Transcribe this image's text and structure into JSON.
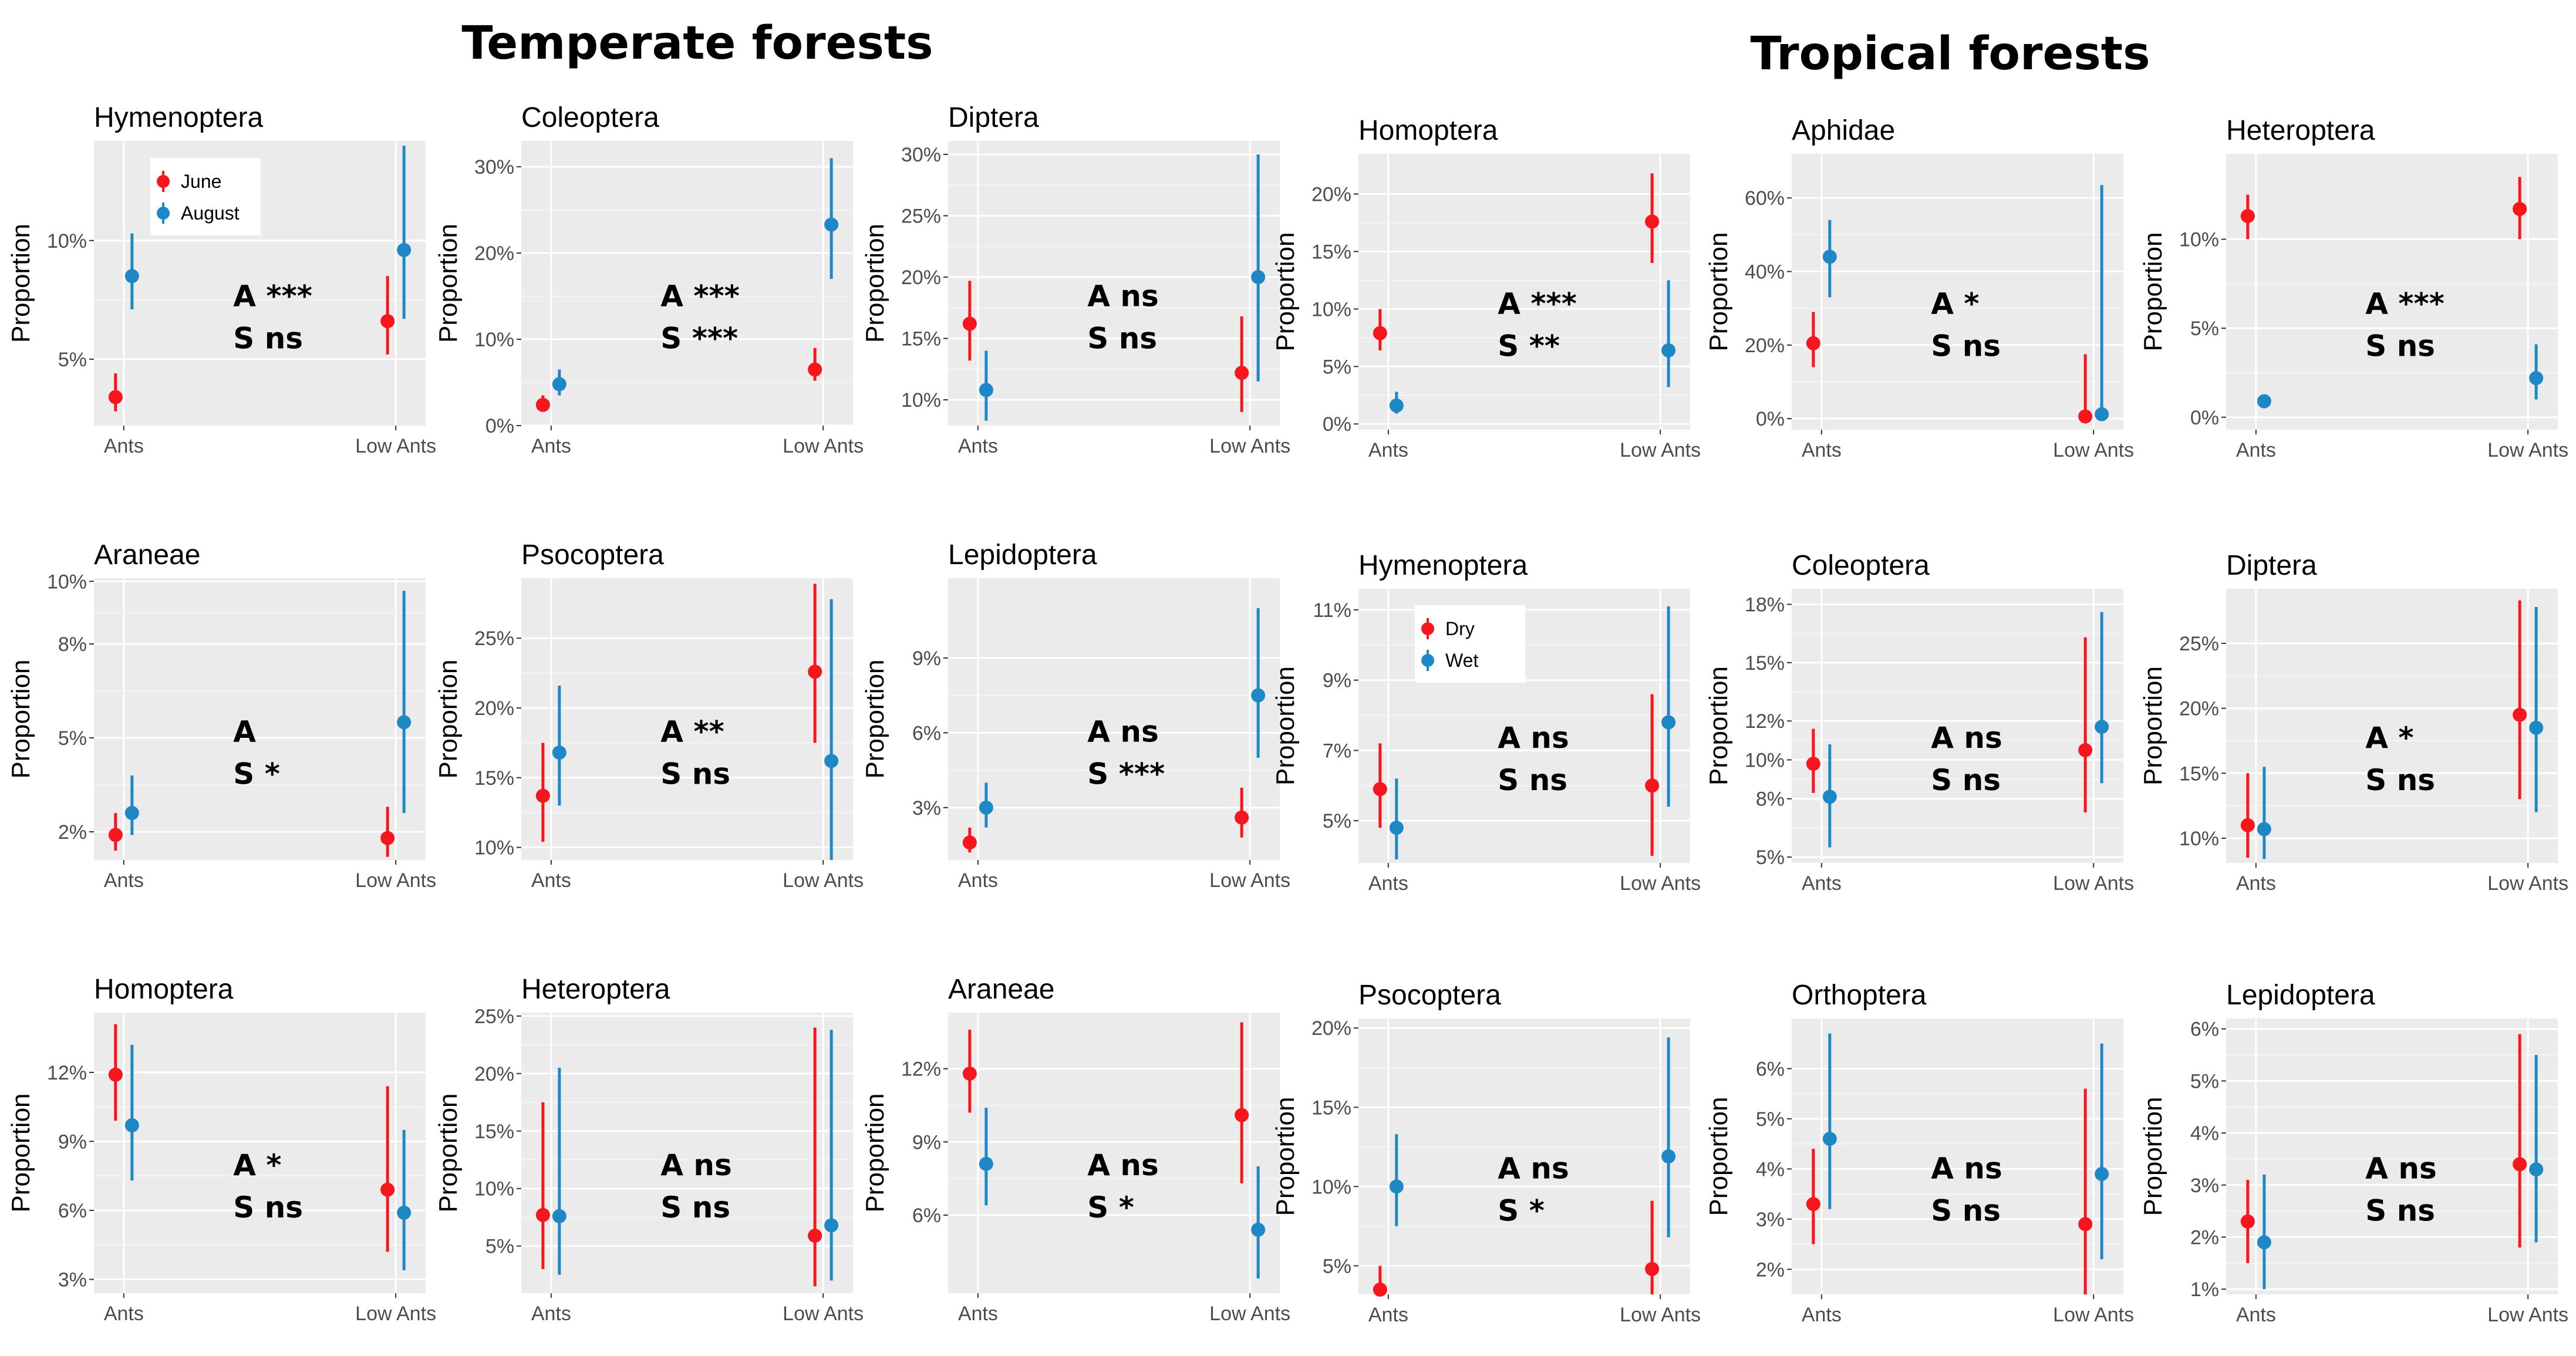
{
  "section_titles": {
    "temperate": "Temperate forests",
    "tropical": "Tropical forests"
  },
  "colors": {
    "series1": "#f8151b",
    "series2": "#1e88c7",
    "panel_bg": "#ebebeb",
    "grid": "#ffffff"
  },
  "chart_data": [
    {
      "type": "scatter",
      "section": "temperate",
      "title": "Hymenoptera",
      "ylabel": "Proportion",
      "categories": [
        "Ants",
        "Low Ants"
      ],
      "ylim": [
        2.2,
        14.2
      ],
      "yticks": [
        5,
        10
      ],
      "yticklabels": [
        "5%",
        "10%"
      ],
      "series": [
        {
          "name": "June",
          "values": [
            3.4,
            6.6
          ],
          "err_low": [
            2.8,
            5.2
          ],
          "err_high": [
            4.4,
            8.5
          ]
        },
        {
          "name": "August",
          "values": [
            8.5,
            9.6
          ],
          "err_low": [
            7.1,
            6.7
          ],
          "err_high": [
            10.3,
            14.0
          ]
        }
      ],
      "legend": {
        "entries": [
          "June",
          "August"
        ],
        "position": "top-left"
      },
      "annotations": [
        "A ***",
        "S ns"
      ]
    },
    {
      "type": "scatter",
      "section": "temperate",
      "title": "Coleoptera",
      "ylabel": "Proportion",
      "categories": [
        "Ants",
        "Low Ants"
      ],
      "ylim": [
        0,
        33
      ],
      "yticks": [
        0,
        10,
        20,
        30
      ],
      "yticklabels": [
        "0%",
        "10%",
        "20%",
        "30%"
      ],
      "series": [
        {
          "name": "June",
          "values": [
            2.4,
            6.5
          ],
          "err_low": [
            1.6,
            5.2
          ],
          "err_high": [
            3.5,
            9.0
          ]
        },
        {
          "name": "August",
          "values": [
            4.8,
            23.3
          ],
          "err_low": [
            3.5,
            17.0
          ],
          "err_high": [
            6.5,
            31.0
          ]
        }
      ],
      "annotations": [
        "A ***",
        "S ***"
      ]
    },
    {
      "type": "scatter",
      "section": "temperate",
      "title": "Diptera",
      "ylabel": "Proportion",
      "categories": [
        "Ants",
        "Low Ants"
      ],
      "ylim": [
        7.9,
        31.1
      ],
      "yticks": [
        10,
        15,
        20,
        25,
        30
      ],
      "yticklabels": [
        "10%",
        "15%",
        "20%",
        "25%",
        "30%"
      ],
      "series": [
        {
          "name": "June",
          "values": [
            16.2,
            12.2
          ],
          "err_low": [
            13.2,
            9.0
          ],
          "err_high": [
            19.7,
            16.8
          ]
        },
        {
          "name": "August",
          "values": [
            10.8,
            20.0
          ],
          "err_low": [
            8.3,
            11.5
          ],
          "err_high": [
            14.0,
            30.0
          ]
        }
      ],
      "annotations": [
        "A ns",
        "S ns"
      ]
    },
    {
      "type": "scatter",
      "section": "temperate",
      "title": "Homoptera",
      "ylabel": "Proportion",
      "categories": [
        "Ants",
        "Low Ants"
      ],
      "ylim": [
        -0.5,
        23.5
      ],
      "yticks": [
        0,
        5,
        10,
        15,
        20
      ],
      "yticklabels": [
        "0%",
        "5%",
        "10%",
        "15%",
        "20%"
      ],
      "series": [
        {
          "name": "June",
          "values": [
            7.9,
            17.6
          ],
          "err_low": [
            6.4,
            14.0
          ],
          "err_high": [
            10.0,
            21.8
          ]
        },
        {
          "name": "August",
          "values": [
            1.6,
            6.4
          ],
          "err_low": [
            0.9,
            3.2
          ],
          "err_high": [
            2.8,
            12.5
          ]
        }
      ],
      "annotations": [
        "A ***",
        "S **"
      ]
    },
    {
      "type": "scatter",
      "section": "temperate",
      "title": "Aphidae",
      "ylabel": "Proportion",
      "categories": [
        "Ants",
        "Low Ants"
      ],
      "ylim": [
        -3,
        72
      ],
      "yticks": [
        0,
        20,
        40,
        60
      ],
      "yticklabels": [
        "0%",
        "20%",
        "40%",
        "60%"
      ],
      "series": [
        {
          "name": "June",
          "values": [
            20.5,
            0.6
          ],
          "err_low": [
            14.0,
            0.0
          ],
          "err_high": [
            29.0,
            17.5
          ]
        },
        {
          "name": "August",
          "values": [
            44.0,
            1.2
          ],
          "err_low": [
            33.0,
            0.0
          ],
          "err_high": [
            54.0,
            63.5
          ]
        }
      ],
      "annotations": [
        "A *",
        "S ns"
      ]
    },
    {
      "type": "scatter",
      "section": "temperate",
      "title": "Heteroptera",
      "ylabel": "Proportion",
      "categories": [
        "Ants",
        "Low Ants"
      ],
      "ylim": [
        -0.7,
        14.8
      ],
      "yticks": [
        0,
        5,
        10
      ],
      "yticklabels": [
        "0%",
        "5%",
        "10%"
      ],
      "series": [
        {
          "name": "June",
          "values": [
            11.3,
            11.7
          ],
          "err_low": [
            10.0,
            10.0
          ],
          "err_high": [
            12.5,
            13.5
          ]
        },
        {
          "name": "August",
          "values": [
            0.9,
            2.2
          ],
          "err_low": [
            0.5,
            1.0
          ],
          "err_high": [
            1.2,
            4.1
          ]
        }
      ],
      "annotations": [
        "A ***",
        "S ns"
      ]
    },
    {
      "type": "scatter",
      "section": "temperate",
      "title": "Araneae",
      "ylabel": "Proportion",
      "categories": [
        "Ants",
        "Low Ants"
      ],
      "ylim": [
        1.1,
        10.1
      ],
      "yticks": [
        2,
        5,
        8,
        10
      ],
      "yticklabels": [
        "2%",
        "5%",
        "8%",
        "10%"
      ],
      "series": [
        {
          "name": "June",
          "values": [
            1.9,
            1.8
          ],
          "err_low": [
            1.4,
            1.2
          ],
          "err_high": [
            2.6,
            2.8
          ]
        },
        {
          "name": "August",
          "values": [
            2.6,
            5.5
          ],
          "err_low": [
            1.9,
            2.6
          ],
          "err_high": [
            3.8,
            9.7
          ]
        }
      ],
      "annotations": [
        "A",
        "S *"
      ]
    },
    {
      "type": "scatter",
      "section": "temperate",
      "title": "Psocoptera",
      "ylabel": "Proportion",
      "categories": [
        "Ants",
        "Low Ants"
      ],
      "ylim": [
        9.1,
        29.3
      ],
      "yticks": [
        10,
        15,
        20,
        25
      ],
      "yticklabels": [
        "10%",
        "15%",
        "20%",
        "25%"
      ],
      "series": [
        {
          "name": "June",
          "values": [
            13.7,
            22.6
          ],
          "err_low": [
            10.4,
            17.5
          ],
          "err_high": [
            17.5,
            28.9
          ]
        },
        {
          "name": "August",
          "values": [
            16.8,
            16.2
          ],
          "err_low": [
            13.0,
            8.7
          ],
          "err_high": [
            21.6,
            27.8
          ]
        }
      ],
      "annotations": [
        "A **",
        "S ns"
      ]
    },
    {
      "type": "scatter",
      "section": "temperate",
      "title": "Lepidoptera",
      "ylabel": "Proportion",
      "categories": [
        "Ants",
        "Low Ants"
      ],
      "ylim": [
        0.9,
        12.2
      ],
      "yticks": [
        3,
        6,
        9
      ],
      "yticklabels": [
        "3%",
        "6%",
        "9%"
      ],
      "series": [
        {
          "name": "June",
          "values": [
            1.6,
            2.6
          ],
          "err_low": [
            1.2,
            1.8
          ],
          "err_high": [
            2.2,
            3.8
          ]
        },
        {
          "name": "August",
          "values": [
            3.0,
            7.5
          ],
          "err_low": [
            2.2,
            5.0
          ],
          "err_high": [
            4.0,
            11.0
          ]
        }
      ],
      "annotations": [
        "A ns",
        "S ***"
      ]
    },
    {
      "type": "scatter",
      "section": "tropical",
      "title": "Hymenoptera",
      "ylabel": "Proportion",
      "categories": [
        "Ants",
        "Low Ants"
      ],
      "ylim": [
        3.8,
        11.6
      ],
      "yticks": [
        5,
        7,
        9,
        11
      ],
      "yticklabels": [
        "5%",
        "7%",
        "9%",
        "11%"
      ],
      "series": [
        {
          "name": "Dry",
          "values": [
            5.9,
            6.0
          ],
          "err_low": [
            4.8,
            4.0
          ],
          "err_high": [
            7.2,
            8.6
          ]
        },
        {
          "name": "Wet",
          "values": [
            4.8,
            7.8
          ],
          "err_low": [
            3.9,
            5.4
          ],
          "err_high": [
            6.2,
            11.1
          ]
        }
      ],
      "legend": {
        "entries": [
          "Dry",
          "Wet"
        ],
        "position": "top-left"
      },
      "annotations": [
        "A ns",
        "S ns"
      ]
    },
    {
      "type": "scatter",
      "section": "tropical",
      "title": "Coleoptera",
      "ylabel": "Proportion",
      "categories": [
        "Ants",
        "Low Ants"
      ],
      "ylim": [
        4.7,
        18.8
      ],
      "yticks": [
        5,
        8,
        10,
        12,
        15,
        18
      ],
      "yticklabels": [
        "5%",
        "8%",
        "10%",
        "12%",
        "15%",
        "18%"
      ],
      "series": [
        {
          "name": "Dry",
          "values": [
            9.8,
            10.5
          ],
          "err_low": [
            8.3,
            7.3
          ],
          "err_high": [
            11.6,
            16.3
          ]
        },
        {
          "name": "Wet",
          "values": [
            8.1,
            11.7
          ],
          "err_low": [
            5.5,
            8.8
          ],
          "err_high": [
            10.8,
            17.6
          ]
        }
      ],
      "annotations": [
        "A ns",
        "S ns"
      ]
    },
    {
      "type": "scatter",
      "section": "tropical",
      "title": "Diptera",
      "ylabel": "Proportion",
      "categories": [
        "Ants",
        "Low Ants"
      ],
      "ylim": [
        8.1,
        29.2
      ],
      "yticks": [
        10,
        15,
        20,
        25
      ],
      "yticklabels": [
        "10%",
        "15%",
        "20%",
        "25%"
      ],
      "series": [
        {
          "name": "Dry",
          "values": [
            11.0,
            19.5
          ],
          "err_low": [
            8.5,
            13.0
          ],
          "err_high": [
            15.0,
            28.3
          ]
        },
        {
          "name": "Wet",
          "values": [
            10.7,
            18.5
          ],
          "err_low": [
            8.4,
            12.0
          ],
          "err_high": [
            15.5,
            27.8
          ]
        }
      ],
      "annotations": [
        "A *",
        "S ns"
      ]
    },
    {
      "type": "scatter",
      "section": "tropical",
      "title": "Homoptera",
      "ylabel": "Proportion",
      "categories": [
        "Ants",
        "Low Ants"
      ],
      "ylim": [
        2.4,
        14.6
      ],
      "yticks": [
        3,
        6,
        9,
        12
      ],
      "yticklabels": [
        "3%",
        "6%",
        "9%",
        "12%"
      ],
      "series": [
        {
          "name": "Dry",
          "values": [
            11.9,
            6.9
          ],
          "err_low": [
            9.9,
            4.2
          ],
          "err_high": [
            14.1,
            11.4
          ]
        },
        {
          "name": "Wet",
          "values": [
            9.7,
            5.9
          ],
          "err_low": [
            7.3,
            3.4
          ],
          "err_high": [
            13.2,
            9.5
          ]
        }
      ],
      "annotations": [
        "A *",
        "S ns"
      ]
    },
    {
      "type": "scatter",
      "section": "tropical",
      "title": "Heteroptera",
      "ylabel": "Proportion",
      "categories": [
        "Ants",
        "Low Ants"
      ],
      "ylim": [
        0.9,
        25.3
      ],
      "yticks": [
        5,
        10,
        15,
        20,
        25
      ],
      "yticklabels": [
        "5%",
        "10%",
        "15%",
        "20%",
        "25%"
      ],
      "series": [
        {
          "name": "Dry",
          "values": [
            7.7,
            5.9
          ],
          "err_low": [
            3.0,
            1.5
          ],
          "err_high": [
            17.5,
            24.0
          ]
        },
        {
          "name": "Wet",
          "values": [
            7.6,
            6.8
          ],
          "err_low": [
            2.5,
            2.0
          ],
          "err_high": [
            20.5,
            23.8
          ]
        }
      ],
      "annotations": [
        "A ns",
        "S ns"
      ]
    },
    {
      "type": "scatter",
      "section": "tropical",
      "title": "Araneae",
      "ylabel": "Proportion",
      "categories": [
        "Ants",
        "Low Ants"
      ],
      "ylim": [
        2.8,
        14.3
      ],
      "yticks": [
        6,
        9,
        12
      ],
      "yticklabels": [
        "6%",
        "9%",
        "12%"
      ],
      "series": [
        {
          "name": "Dry",
          "values": [
            11.8,
            10.1
          ],
          "err_low": [
            10.2,
            7.3
          ],
          "err_high": [
            13.6,
            13.9
          ]
        },
        {
          "name": "Wet",
          "values": [
            8.1,
            5.4
          ],
          "err_low": [
            6.4,
            3.4
          ],
          "err_high": [
            10.4,
            8.0
          ]
        }
      ],
      "annotations": [
        "A ns",
        "S *"
      ]
    },
    {
      "type": "scatter",
      "section": "tropical",
      "title": "Psocoptera",
      "ylabel": "Proportion",
      "categories": [
        "Ants",
        "Low Ants"
      ],
      "ylim": [
        3.2,
        20.6
      ],
      "yticks": [
        5,
        10,
        15,
        20
      ],
      "yticklabels": [
        "5%",
        "10%",
        "15%",
        "20%"
      ],
      "series": [
        {
          "name": "Dry",
          "values": [
            3.5,
            4.8
          ],
          "err_low": [
            2.5,
            2.5
          ],
          "err_high": [
            5.0,
            9.1
          ]
        },
        {
          "name": "Wet",
          "values": [
            10.0,
            11.9
          ],
          "err_low": [
            7.5,
            6.8
          ],
          "err_high": [
            13.3,
            19.4
          ]
        }
      ],
      "annotations": [
        "A ns",
        "S *"
      ]
    },
    {
      "type": "scatter",
      "section": "tropical",
      "title": "Orthoptera",
      "ylabel": "Proportion",
      "categories": [
        "Ants",
        "Low Ants"
      ],
      "ylim": [
        1.5,
        7.0
      ],
      "yticks": [
        2,
        3,
        4,
        5,
        6
      ],
      "yticklabels": [
        "2%",
        "3%",
        "4%",
        "5%",
        "6%"
      ],
      "series": [
        {
          "name": "Dry",
          "values": [
            3.3,
            2.9
          ],
          "err_low": [
            2.5,
            1.4
          ],
          "err_high": [
            4.4,
            5.6
          ]
        },
        {
          "name": "Wet",
          "values": [
            4.6,
            3.9
          ],
          "err_low": [
            3.2,
            2.2
          ],
          "err_high": [
            6.7,
            6.5
          ]
        }
      ],
      "annotations": [
        "A ns",
        "S ns"
      ]
    },
    {
      "type": "scatter",
      "section": "tropical",
      "title": "Lepidoptera",
      "ylabel": "Proportion",
      "categories": [
        "Ants",
        "Low Ants"
      ],
      "ylim": [
        0.9,
        6.2
      ],
      "yticks": [
        1,
        2,
        3,
        4,
        5,
        6
      ],
      "yticklabels": [
        "1%",
        "2%",
        "3%",
        "4%",
        "5%",
        "6%"
      ],
      "series": [
        {
          "name": "Dry",
          "values": [
            2.3,
            3.4
          ],
          "err_low": [
            1.5,
            1.8
          ],
          "err_high": [
            3.1,
            5.9
          ]
        },
        {
          "name": "Wet",
          "values": [
            1.9,
            3.3
          ],
          "err_low": [
            1.0,
            1.9
          ],
          "err_high": [
            3.2,
            5.5
          ]
        }
      ],
      "annotations": [
        "A ns",
        "S ns"
      ]
    }
  ]
}
